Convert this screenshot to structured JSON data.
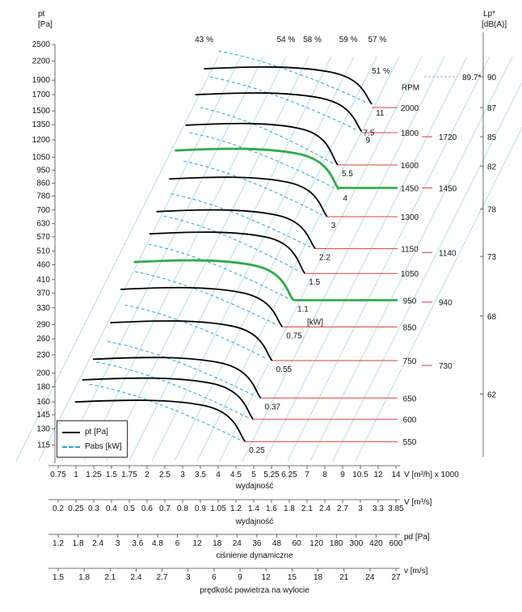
{
  "chart_data": {
    "type": "line",
    "title": "",
    "y_axis": {
      "title_line1": "pt",
      "title_line2": "[Pa]",
      "ticks": [
        2500,
        2200,
        1900,
        1700,
        1500,
        1350,
        1200,
        1050,
        950,
        860,
        780,
        700,
        630,
        570,
        510,
        460,
        410,
        370,
        330,
        290,
        260,
        230,
        200,
        180,
        160,
        145,
        130,
        115
      ]
    },
    "right_axis": {
      "title_line1": "Lp*",
      "title_line2": "[dB(A)]",
      "ticks": [
        {
          "label": "90",
          "at_pt": 1950
        },
        {
          "label": "87",
          "at_pt": 1540
        },
        {
          "label": "85",
          "at_pt": 1230
        },
        {
          "label": "82",
          "at_pt": 980
        },
        {
          "label": "78",
          "at_pt": 705
        },
        {
          "label": "73",
          "at_pt": 490
        },
        {
          "label": "68",
          "at_pt": 310
        },
        {
          "label": "62",
          "at_pt": 170
        }
      ],
      "marker": {
        "label": "89.7*",
        "at_pt": 1950
      }
    },
    "efficiency_labels": [
      {
        "label": "43 %",
        "x": 2.4
      },
      {
        "label": "54 %",
        "x": 5.4
      },
      {
        "label": "58 %",
        "x": 7.0
      },
      {
        "label": "59 %",
        "x": 10.0
      },
      {
        "label": "57 %",
        "x": 13.3
      },
      {
        "label": "51 %",
        "x": 13.8,
        "pt": 2050
      }
    ],
    "rpm_title": "RPM",
    "series": [
      {
        "name": "2000",
        "rpm": "2000",
        "power": "11",
        "x_start": 2.4,
        "x_end": 12.6,
        "pt": 2100,
        "pt_end": 1580,
        "pt_ref": 1540
      },
      {
        "name": "1800",
        "rpm": "1800",
        "power": "9",
        "x_start": 2.2,
        "x_end": 11.4,
        "pt": 1720,
        "pt_end": 1280,
        "pt_ref": 1270,
        "extra_power": "7.5"
      },
      {
        "name": "1600",
        "rpm": "1600",
        "power": "5.5",
        "x_start": 2.0,
        "x_end": 9.0,
        "pt": 1360,
        "pt_end": 990,
        "pt_ref": 990
      },
      {
        "name": "1450",
        "rpm": "1450",
        "power": "4",
        "x_start": 1.8,
        "x_end": 9.1,
        "pt": 1120,
        "pt_end": 820,
        "pt_ref": 830,
        "highlight": true
      },
      {
        "name": "1300",
        "rpm": "1300",
        "power": "3",
        "x_start": 1.7,
        "x_end": 8.1,
        "pt": 900,
        "pt_end": 665,
        "pt_ref": 665
      },
      {
        "name": "1150",
        "rpm": "1150",
        "power": "2.2",
        "x_start": 1.5,
        "x_end": 7.2,
        "pt": 700,
        "pt_end": 520,
        "pt_ref": 520
      },
      {
        "name": "1050",
        "rpm": "1050",
        "power": "1.5",
        "x_start": 1.4,
        "x_end": 6.5,
        "pt": 590,
        "pt_end": 430,
        "pt_ref": 430
      },
      {
        "name": "950",
        "rpm": "950",
        "power": "1.1",
        "x_start": 1.2,
        "x_end": 5.8,
        "pt": 475,
        "pt_end": 350,
        "pt_ref": 350,
        "highlight": true
      },
      {
        "name": "850",
        "rpm": "850",
        "power": "0.75",
        "x_start": 1.05,
        "x_end": 5.2,
        "pt": 385,
        "pt_end": 285,
        "pt_ref": 285
      },
      {
        "name": "750",
        "rpm": "750",
        "power": "0.55",
        "x_start": 0.95,
        "x_end": 4.7,
        "pt": 298,
        "pt_end": 220,
        "pt_ref": 220
      },
      {
        "name": "650",
        "rpm": "650",
        "power": "0.37",
        "x_start": 0.8,
        "x_end": 4.2,
        "pt": 225,
        "pt_end": 165,
        "pt_ref": 165
      },
      {
        "name": "600",
        "rpm": "600",
        "power": "",
        "x_start": 0.72,
        "x_end": 3.9,
        "pt": 192,
        "pt_end": 140,
        "pt_ref": 140
      },
      {
        "name": "550",
        "rpm": "550",
        "power": "0.25",
        "x_start": 0.67,
        "x_end": 3.6,
        "pt": 162,
        "pt_end": 118,
        "pt_ref": 118
      }
    ],
    "kw_unit_label": "[kW]",
    "extra_rpm": [
      {
        "label": "1720",
        "pt": 1230
      },
      {
        "label": "1450",
        "pt": 830
      },
      {
        "label": "1140",
        "pt": 505
      },
      {
        "label": "940",
        "pt": 345
      },
      {
        "label": "730",
        "pt": 212
      }
    ],
    "x_axes": [
      {
        "unit": "V [m³/h]  x 1000",
        "caption": "wydajność",
        "ticks": [
          "0.75",
          "1",
          "1.25",
          "1.5",
          "1.75",
          "2",
          "2.5",
          "3",
          "3.5",
          "4",
          "4.5",
          "5",
          "5.25",
          "6.25",
          "7",
          "8",
          "9",
          "10.5",
          "12",
          "14"
        ],
        "values": [
          0.75,
          1,
          1.25,
          1.5,
          1.75,
          2,
          2.5,
          3,
          3.5,
          4,
          4.5,
          5,
          5.25,
          6.25,
          7,
          8,
          9,
          10.5,
          12,
          14
        ]
      },
      {
        "unit": "V  [m³/s]",
        "caption": "wydajność",
        "ticks": [
          "0.2",
          "0.25",
          "0.3",
          "0.4",
          "0.5",
          "0.6",
          "0.7",
          "0.8",
          "0.9",
          "1.05",
          "1.2",
          "1.4",
          "1.6",
          "1.8",
          "2.1",
          "2.4",
          "2.7",
          "3",
          "3.3",
          "3.85"
        ]
      },
      {
        "unit": "pd  [Pa]",
        "caption": "ciśnienie dynamiczne",
        "ticks": [
          "1.2",
          "1.8",
          "2.4",
          "3",
          "3.6",
          "4.8",
          "6",
          "12",
          "18",
          "24",
          "36",
          "48",
          "60",
          "120",
          "180",
          "300",
          "420",
          "600"
        ]
      },
      {
        "unit": "v  [m/s]",
        "caption": "prędkość powietrza na wylocie",
        "ticks": [
          "1.5",
          "1.8",
          "2.1",
          "2.4",
          "2.7",
          "3",
          "6",
          "9",
          "12",
          "15",
          "18",
          "21",
          "24",
          "27"
        ]
      }
    ],
    "legend": [
      {
        "label": "pt [Pa]",
        "style": "solid",
        "color": "#000000"
      },
      {
        "label": "Pabs [kW]",
        "style": "dashed",
        "color": "#27a6d3"
      }
    ],
    "colors": {
      "curve": "#000000",
      "highlight": "#2faa4a",
      "rpm_line": "#d9403a",
      "grid": "#9fd6e8",
      "pabs": "#27a6d3"
    }
  }
}
